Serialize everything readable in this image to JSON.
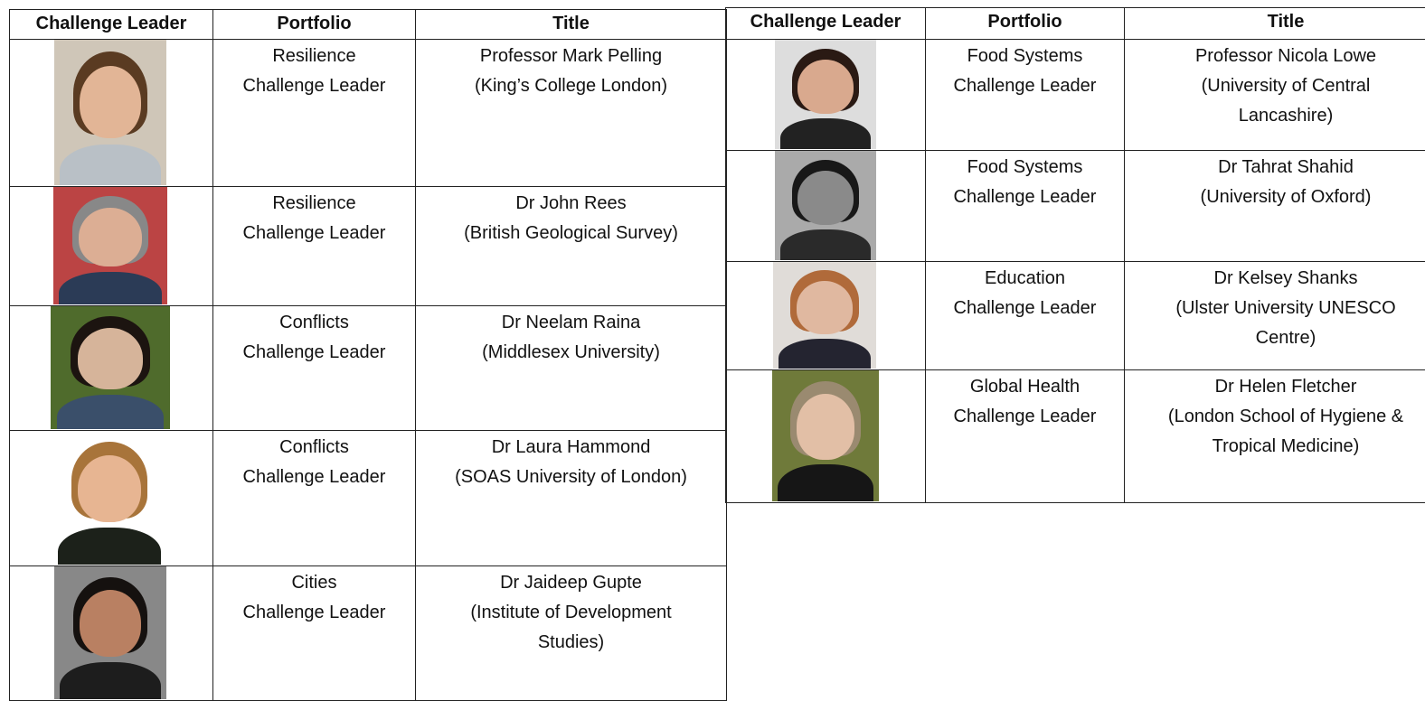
{
  "tables": [
    {
      "header": [
        "Challenge Leader",
        "Portfolio",
        "Title"
      ],
      "rows": [
        {
          "portfolio": [
            "Resilience",
            "Challenge Leader"
          ],
          "title": [
            "Professor Mark Pelling",
            "(King’s College London)"
          ]
        },
        {
          "portfolio": [
            "Resilience",
            "Challenge Leader"
          ],
          "title": [
            "Dr John Rees",
            "(British Geological Survey)"
          ]
        },
        {
          "portfolio": [
            "Conflicts",
            "Challenge Leader"
          ],
          "title": [
            "Dr Neelam Raina",
            "(Middlesex University)"
          ]
        },
        {
          "portfolio": [
            "Conflicts",
            "Challenge Leader"
          ],
          "title": [
            "Dr Laura Hammond",
            "(SOAS University of London)"
          ]
        },
        {
          "portfolio": [
            "Cities",
            "Challenge Leader"
          ],
          "title": [
            "Dr Jaideep Gupte",
            "(Institute of Development",
            "Studies)"
          ]
        }
      ]
    },
    {
      "header": [
        "Challenge Leader",
        "Portfolio",
        "Title"
      ],
      "rows": [
        {
          "portfolio": [
            "Food Systems",
            "Challenge Leader"
          ],
          "title": [
            "Professor Nicola Lowe",
            "(University of Central",
            "Lancashire)"
          ]
        },
        {
          "portfolio": [
            "Food Systems",
            "Challenge Leader"
          ],
          "title": [
            "Dr Tahrat Shahid",
            "(University of Oxford)"
          ]
        },
        {
          "portfolio": [
            "Education",
            "Challenge Leader"
          ],
          "title": [
            "Dr Kelsey Shanks",
            "(Ulster University UNESCO",
            "Centre)"
          ]
        },
        {
          "portfolio": [
            "Global Health",
            "Challenge Leader"
          ],
          "title": [
            "Dr Helen Fletcher",
            "(London School of Hygiene &",
            "Tropical Medicine)"
          ]
        }
      ]
    }
  ]
}
